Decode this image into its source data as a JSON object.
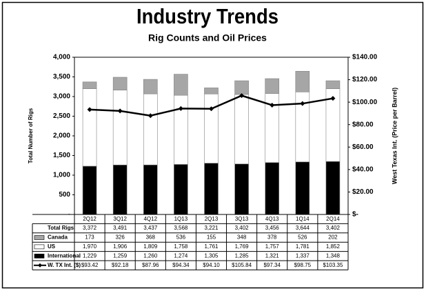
{
  "chart_data": {
    "type": "bar",
    "title": "Industry Trends",
    "subtitle": "Rig Counts and Oil Prices",
    "y_label": "Total Number of Rigs",
    "y2_label": "West Texas Int. (Price per Barrel)",
    "categories": [
      "2Q12",
      "3Q12",
      "4Q12",
      "1Q13",
      "2Q13",
      "3Q13",
      "4Q13",
      "1Q14",
      "2Q14"
    ],
    "totals": {
      "name": "Total Rigs",
      "labels": [
        "3,372",
        "3,491",
        "3,437",
        "3,568",
        "3,221",
        "3,402",
        "3,456",
        "3,644",
        "3,402"
      ]
    },
    "series": [
      {
        "name": "Canada",
        "type": "bar",
        "color": "#a6a6a6",
        "values": [
          173,
          326,
          368,
          536,
          155,
          348,
          378,
          526,
          202
        ],
        "value_labels": [
          "173",
          "326",
          "368",
          "536",
          "155",
          "348",
          "378",
          "526",
          "202"
        ]
      },
      {
        "name": "US",
        "type": "bar",
        "color": "#ffffff",
        "values": [
          1970,
          1906,
          1809,
          1758,
          1761,
          1769,
          1757,
          1781,
          1852
        ],
        "value_labels": [
          "1,970",
          "1,906",
          "1,809",
          "1,758",
          "1,761",
          "1,769",
          "1,757",
          "1,781",
          "1,852"
        ]
      },
      {
        "name": "International",
        "type": "bar",
        "color": "#000000",
        "values": [
          1229,
          1259,
          1260,
          1274,
          1305,
          1285,
          1321,
          1337,
          1348
        ],
        "value_labels": [
          "1,229",
          "1,259",
          "1,260",
          "1,274",
          "1,305",
          "1,285",
          "1,321",
          "1,337",
          "1,348"
        ]
      },
      {
        "name": "W. TX Int. ($)",
        "type": "line",
        "axis": "y2",
        "color": "#000000",
        "values": [
          93.42,
          92.18,
          87.96,
          94.34,
          94.1,
          105.84,
          97.34,
          98.75,
          103.35
        ],
        "value_labels": [
          "$93.42",
          "$92.18",
          "$87.96",
          "$94.34",
          "$94.10",
          "$105.84",
          "$97.34",
          "$98.75",
          "$103.35"
        ]
      }
    ],
    "ylim": [
      0,
      4000
    ],
    "yticks": [
      {
        "value": 0,
        "label": "-"
      },
      500,
      {
        "value": 1000,
        "label": "1,000"
      },
      {
        "value": 1500,
        "label": "1,500"
      },
      {
        "value": 2000,
        "label": "2,000"
      },
      {
        "value": 2500,
        "label": "2,500"
      },
      {
        "value": 3000,
        "label": "3,000"
      },
      {
        "value": 3500,
        "label": "3,500"
      },
      {
        "value": 4000,
        "label": "4,000"
      }
    ],
    "y2lim": [
      0,
      140
    ],
    "y2ticks": [
      {
        "value": 0,
        "label": "$-"
      },
      {
        "value": 20,
        "label": "$20.00"
      },
      {
        "value": 40,
        "label": "$40.00"
      },
      {
        "value": 60,
        "label": "$60.00"
      },
      {
        "value": 80,
        "label": "$80.00"
      },
      {
        "value": 100,
        "label": "$100.00"
      },
      {
        "value": 120,
        "label": "$120.00"
      },
      {
        "value": 140,
        "label": "$140.00"
      }
    ],
    "grid": false
  }
}
